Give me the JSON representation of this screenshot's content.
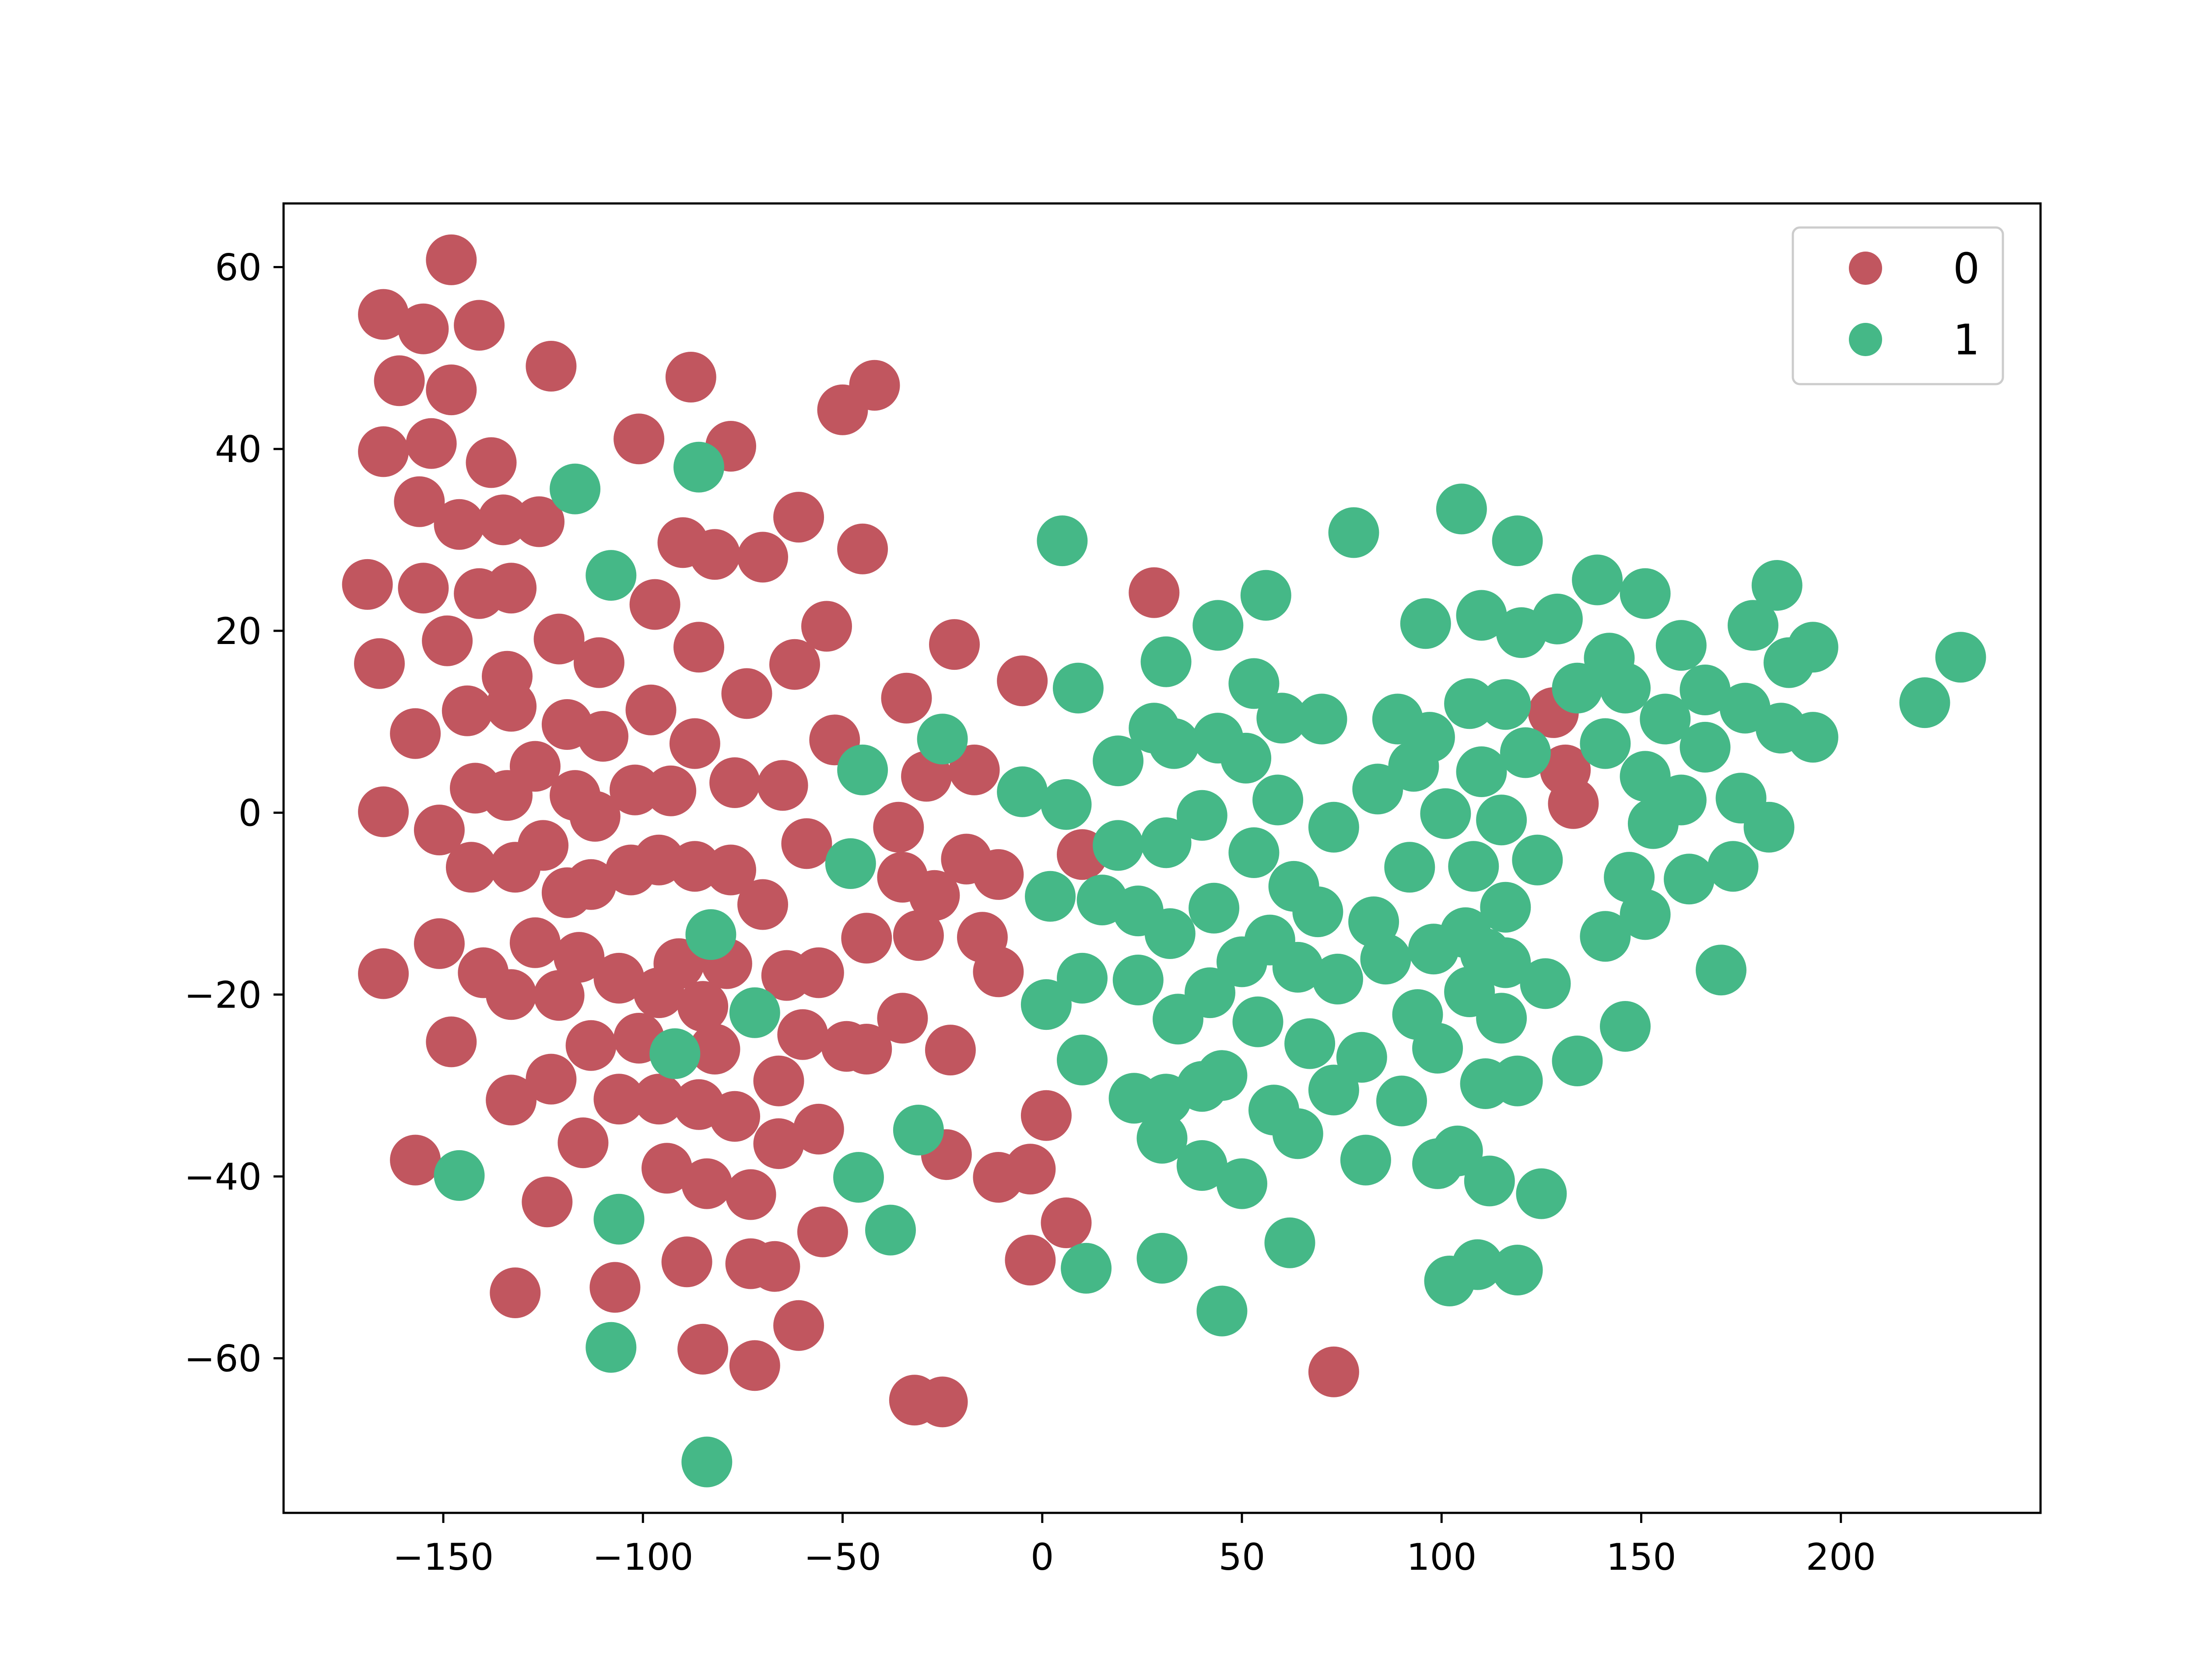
{
  "chart_data": {
    "type": "scatter",
    "title": "",
    "xlabel": "",
    "ylabel": "",
    "xlim": [
      -190,
      250
    ],
    "ylim": [
      -77,
      67
    ],
    "xticks": [
      -150,
      -100,
      -50,
      0,
      50,
      100,
      150,
      200
    ],
    "yticks": [
      -60,
      -40,
      -20,
      0,
      20,
      40,
      60
    ],
    "grid": false,
    "legend_placement": "top-right",
    "series": [
      {
        "name": "0",
        "color": "#c1565f",
        "points": [
          [
            -148,
            60.8
          ],
          [
            -165,
            54.8
          ],
          [
            -155,
            53.2
          ],
          [
            -141,
            53.6
          ],
          [
            -123,
            49.1
          ],
          [
            -161,
            47.5
          ],
          [
            -148,
            46.5
          ],
          [
            -88,
            47.9
          ],
          [
            -42,
            47.0
          ],
          [
            -50,
            44.3
          ],
          [
            -165,
            39.7
          ],
          [
            -153,
            40.6
          ],
          [
            -138,
            38.5
          ],
          [
            -101,
            41.1
          ],
          [
            -78,
            40.3
          ],
          [
            -156,
            34.2
          ],
          [
            -146,
            31.7
          ],
          [
            -135,
            32.2
          ],
          [
            -126,
            32.0
          ],
          [
            -90,
            29.7
          ],
          [
            -82,
            28.4
          ],
          [
            -70,
            28.1
          ],
          [
            -61,
            32.5
          ],
          [
            -45,
            29.0
          ],
          [
            -169,
            25.1
          ],
          [
            -155,
            24.7
          ],
          [
            -141,
            24.1
          ],
          [
            -133,
            24.7
          ],
          [
            -97,
            22.9
          ],
          [
            -54,
            20.5
          ],
          [
            -22,
            18.5
          ],
          [
            -166,
            16.4
          ],
          [
            -149,
            18.9
          ],
          [
            -121,
            19.1
          ],
          [
            -111,
            16.5
          ],
          [
            -134,
            15.0
          ],
          [
            -86,
            18.2
          ],
          [
            -62,
            16.3
          ],
          [
            -74,
            13.1
          ],
          [
            -157,
            8.7
          ],
          [
            -144,
            11.2
          ],
          [
            -133,
            11.7
          ],
          [
            -119,
            9.7
          ],
          [
            -110,
            8.4
          ],
          [
            -98,
            11.3
          ],
          [
            -87,
            7.6
          ],
          [
            -52,
            8.0
          ],
          [
            -34,
            12.6
          ],
          [
            -5,
            14.5
          ],
          [
            -165,
            0.1
          ],
          [
            -151,
            -1.9
          ],
          [
            -142,
            2.7
          ],
          [
            -134,
            1.9
          ],
          [
            -127,
            5.1
          ],
          [
            -117,
            1.9
          ],
          [
            -112,
            -0.4
          ],
          [
            -102,
            2.5
          ],
          [
            -93,
            2.4
          ],
          [
            -77,
            3.3
          ],
          [
            -65,
            3.0
          ],
          [
            -59,
            -3.4
          ],
          [
            -36,
            -1.6
          ],
          [
            -29,
            4.0
          ],
          [
            -17,
            4.7
          ],
          [
            -143,
            -6.0
          ],
          [
            -132,
            -6.0
          ],
          [
            -125,
            -3.6
          ],
          [
            -119,
            -8.8
          ],
          [
            -113,
            -7.9
          ],
          [
            -103,
            -6.3
          ],
          [
            -96,
            -5.2
          ],
          [
            -87,
            -5.9
          ],
          [
            -78,
            -6.3
          ],
          [
            -70,
            -10.1
          ],
          [
            -35,
            -7.1
          ],
          [
            -27,
            -9.1
          ],
          [
            -19,
            -5.1
          ],
          [
            -11,
            -6.8
          ],
          [
            10,
            -4.6
          ],
          [
            -151,
            -14.4
          ],
          [
            -140,
            -17.6
          ],
          [
            -133,
            -20.0
          ],
          [
            -127,
            -14.3
          ],
          [
            -121,
            -20.1
          ],
          [
            -116,
            -15.9
          ],
          [
            -113,
            -25.6
          ],
          [
            -106,
            -18.2
          ],
          [
            -101,
            -24.8
          ],
          [
            -96,
            -19.8
          ],
          [
            -91,
            -16.6
          ],
          [
            -85,
            -21.3
          ],
          [
            -79,
            -16.6
          ],
          [
            -82,
            -26.0
          ],
          [
            -64,
            -17.9
          ],
          [
            -56,
            -17.6
          ],
          [
            -44,
            -13.8
          ],
          [
            -31,
            -13.5
          ],
          [
            -15,
            -13.7
          ],
          [
            -11,
            -17.5
          ],
          [
            -165,
            -17.7
          ],
          [
            -148,
            -25.2
          ],
          [
            -123,
            -29.3
          ],
          [
            -133,
            -31.6
          ],
          [
            -106,
            -31.5
          ],
          [
            -96,
            -31.5
          ],
          [
            -86,
            -32.1
          ],
          [
            -77,
            -33.4
          ],
          [
            -66,
            -29.5
          ],
          [
            -60,
            -24.4
          ],
          [
            -49,
            -25.7
          ],
          [
            -44,
            -26.0
          ],
          [
            -35,
            -22.6
          ],
          [
            -23,
            -26.1
          ],
          [
            -157,
            -38.2
          ],
          [
            -115,
            -36.3
          ],
          [
            -124,
            -42.8
          ],
          [
            -94,
            -39.1
          ],
          [
            -84,
            -40.8
          ],
          [
            -73,
            -42.0
          ],
          [
            -66,
            -36.4
          ],
          [
            -56,
            -34.8
          ],
          [
            -24,
            -37.6
          ],
          [
            -11,
            -40.1
          ],
          [
            -3,
            -39.2
          ],
          [
            1,
            -33.3
          ],
          [
            6,
            -45.1
          ],
          [
            -132,
            -52.8
          ],
          [
            -107,
            -52.2
          ],
          [
            -89,
            -49.4
          ],
          [
            -73,
            -49.6
          ],
          [
            -67,
            -49.9
          ],
          [
            -55,
            -46.1
          ],
          [
            -3,
            -49.2
          ],
          [
            -85,
            -59.0
          ],
          [
            -72,
            -60.8
          ],
          [
            -61,
            -56.4
          ],
          [
            -32,
            -64.6
          ],
          [
            -25,
            -64.8
          ],
          [
            73,
            -61.5
          ],
          [
            28,
            24.2
          ],
          [
            128,
            11.0
          ],
          [
            131,
            4.7
          ],
          [
            133,
            1.0
          ]
        ]
      },
      {
        "name": "1",
        "color": "#45b887",
        "points": [
          [
            -117,
            35.6
          ],
          [
            -86,
            38.0
          ],
          [
            -108,
            26.1
          ],
          [
            5,
            29.9
          ],
          [
            78,
            30.8
          ],
          [
            105,
            33.4
          ],
          [
            119,
            29.9
          ],
          [
            56,
            23.9
          ],
          [
            44,
            20.6
          ],
          [
            96,
            20.8
          ],
          [
            110,
            21.7
          ],
          [
            120,
            19.8
          ],
          [
            129,
            21.3
          ],
          [
            139,
            25.6
          ],
          [
            151,
            24.1
          ],
          [
            160,
            18.4
          ],
          [
            178,
            20.6
          ],
          [
            184,
            25.0
          ],
          [
            193,
            18.2
          ],
          [
            187,
            16.5
          ],
          [
            9,
            13.7
          ],
          [
            31,
            16.6
          ],
          [
            53,
            14.2
          ],
          [
            60,
            10.4
          ],
          [
            70,
            10.3
          ],
          [
            -25,
            8.1
          ],
          [
            -45,
            4.7
          ],
          [
            -5,
            2.3
          ],
          [
            6,
            0.9
          ],
          [
            19,
            5.7
          ],
          [
            28,
            9.3
          ],
          [
            33,
            7.6
          ],
          [
            44,
            8.2
          ],
          [
            51,
            6.0
          ],
          [
            59,
            1.4
          ],
          [
            84,
            2.6
          ],
          [
            89,
            10.3
          ],
          [
            93,
            5.1
          ],
          [
            97,
            8.3
          ],
          [
            107,
            12.0
          ],
          [
            116,
            11.9
          ],
          [
            110,
            4.5
          ],
          [
            121,
            6.6
          ],
          [
            134,
            13.7
          ],
          [
            142,
            17.0
          ],
          [
            146,
            13.7
          ],
          [
            156,
            10.3
          ],
          [
            166,
            13.5
          ],
          [
            176,
            11.5
          ],
          [
            185,
            9.3
          ],
          [
            193,
            8.3
          ],
          [
            141,
            7.6
          ],
          [
            151,
            4.0
          ],
          [
            160,
            1.4
          ],
          [
            166,
            7.2
          ],
          [
            175,
            1.6
          ],
          [
            182,
            -1.6
          ],
          [
            221,
            12.1
          ],
          [
            230,
            17.1
          ],
          [
            -48,
            -5.6
          ],
          [
            2,
            -9.2
          ],
          [
            15,
            -9.6
          ],
          [
            19,
            -3.6
          ],
          [
            24,
            -10.8
          ],
          [
            31,
            -3.3
          ],
          [
            40,
            -0.3
          ],
          [
            32,
            -13.3
          ],
          [
            43,
            -10.5
          ],
          [
            53,
            -4.4
          ],
          [
            63,
            -8.1
          ],
          [
            69,
            -10.9
          ],
          [
            73,
            -1.6
          ],
          [
            101,
            -0.1
          ],
          [
            106,
            -13.2
          ],
          [
            108,
            -5.9
          ],
          [
            115,
            -0.8
          ],
          [
            116,
            -10.4
          ],
          [
            124,
            -5.2
          ],
          [
            147,
            -7.1
          ],
          [
            153,
            -1.2
          ],
          [
            162,
            -7.3
          ],
          [
            173,
            -5.9
          ],
          [
            -83,
            -13.4
          ],
          [
            -72,
            -22.0
          ],
          [
            -92,
            -26.5
          ],
          [
            1,
            -21.1
          ],
          [
            10,
            -18.2
          ],
          [
            24,
            -18.4
          ],
          [
            34,
            -22.7
          ],
          [
            42,
            -19.8
          ],
          [
            50,
            -16.4
          ],
          [
            57,
            -14.0
          ],
          [
            54,
            -23.0
          ],
          [
            64,
            -17.0
          ],
          [
            67,
            -25.4
          ],
          [
            74,
            -18.3
          ],
          [
            83,
            -12.0
          ],
          [
            86,
            -16.1
          ],
          [
            92,
            -6.0
          ],
          [
            98,
            -15.0
          ],
          [
            99,
            -25.9
          ],
          [
            94,
            -22.2
          ],
          [
            107,
            -19.7
          ],
          [
            111,
            -15.5
          ],
          [
            116,
            -16.5
          ],
          [
            115,
            -22.6
          ],
          [
            126,
            -18.8
          ],
          [
            141,
            -13.6
          ],
          [
            151,
            -11.2
          ],
          [
            134,
            -27.3
          ],
          [
            146,
            -23.5
          ],
          [
            170,
            -17.3
          ],
          [
            10,
            -27.2
          ],
          [
            23,
            -31.4
          ],
          [
            30,
            -35.8
          ],
          [
            31,
            -31.5
          ],
          [
            40,
            -30.1
          ],
          [
            45,
            -28.9
          ],
          [
            58,
            -32.7
          ],
          [
            73,
            -30.5
          ],
          [
            80,
            -26.9
          ],
          [
            90,
            -31.7
          ],
          [
            99,
            -38.6
          ],
          [
            104,
            -37.2
          ],
          [
            111,
            -29.8
          ],
          [
            119,
            -29.5
          ],
          [
            -146,
            -39.9
          ],
          [
            -106,
            -44.7
          ],
          [
            -46,
            -40.1
          ],
          [
            -38,
            -45.9
          ],
          [
            -31,
            -34.9
          ],
          [
            40,
            -38.8
          ],
          [
            50,
            -40.8
          ],
          [
            64,
            -35.3
          ],
          [
            81,
            -38.2
          ],
          [
            112,
            -40.5
          ],
          [
            125,
            -41.9
          ],
          [
            -108,
            -58.8
          ],
          [
            -84,
            -71.4
          ],
          [
            11,
            -50.1
          ],
          [
            30,
            -49.0
          ],
          [
            45,
            -54.8
          ],
          [
            62,
            -47.3
          ],
          [
            102,
            -51.5
          ],
          [
            109,
            -49.7
          ],
          [
            119,
            -50.3
          ]
        ]
      }
    ]
  }
}
